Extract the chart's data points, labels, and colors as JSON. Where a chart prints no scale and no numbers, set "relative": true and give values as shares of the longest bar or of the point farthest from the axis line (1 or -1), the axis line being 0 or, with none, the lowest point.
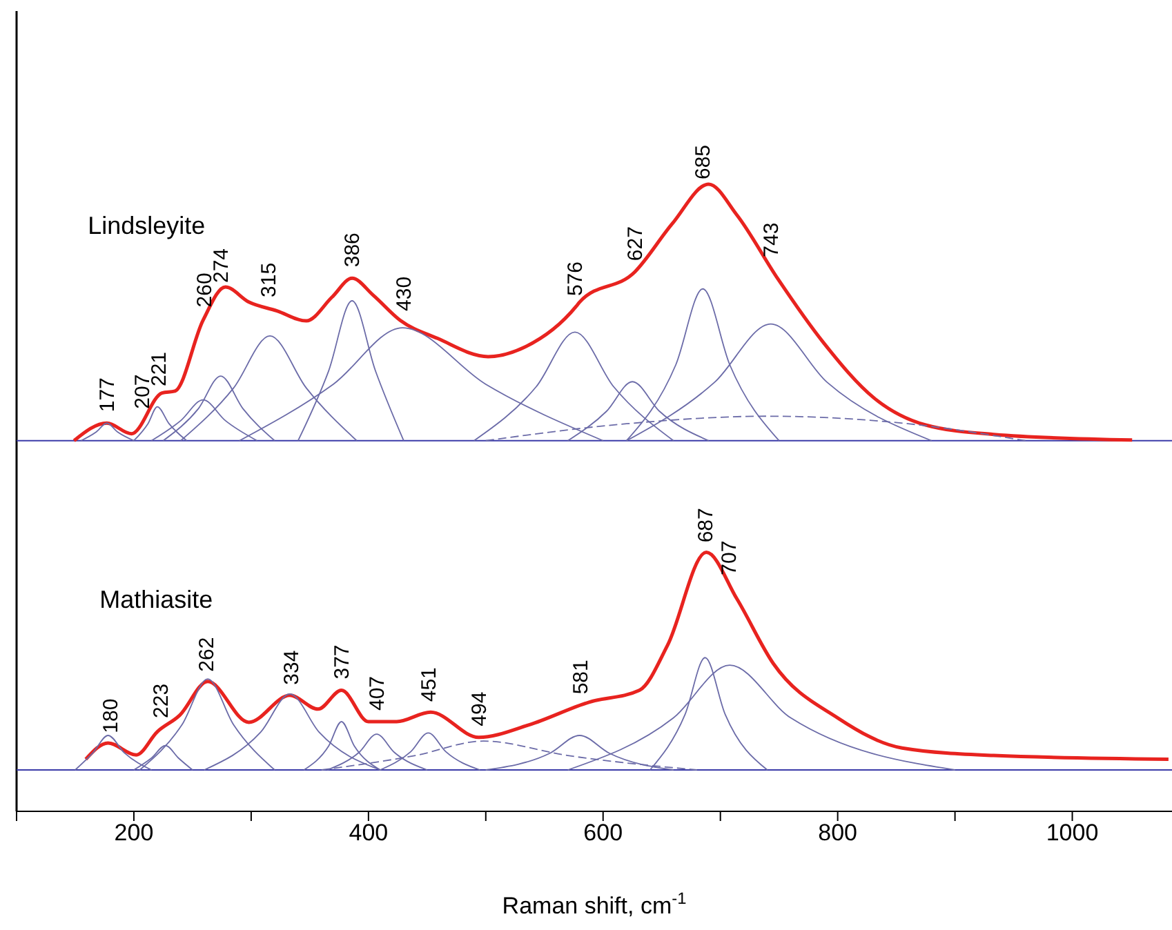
{
  "chart_data": {
    "type": "line",
    "relative": true,
    "xlabel": "Raman shift, cm$^{-1}$",
    "xlim": [
      100,
      1085
    ],
    "xticks": [
      {
        "value": 100,
        "label": null
      },
      200,
      {
        "value": 300,
        "label": null
      },
      400,
      {
        "value": 500,
        "label": null
      },
      600,
      {
        "value": 700,
        "label": null
      },
      800,
      {
        "value": 900,
        "label": null
      },
      1000
    ],
    "tick_labels": "x",
    "ref_lines": [
      {
        "axis": "y",
        "value": 0.591,
        "color": "#3a3aa8"
      },
      {
        "axis": "y",
        "value": 0.066,
        "color": "#3a3aa8"
      }
    ],
    "series": [
      {
        "name": "Lindsleyite",
        "color": "#e8231f",
        "x": [
          149,
          177,
          198,
          224,
          235,
          259,
          278,
          298,
          322,
          347,
          369,
          386,
          404,
          427,
          459,
          502,
          533,
          577,
          580,
          627,
          659,
          690,
          714,
          749,
          788,
          831,
          875,
          933,
          1051
        ],
        "values": [
          0.591,
          0.619,
          0.602,
          0.667,
          0.67,
          0.783,
          0.836,
          0.812,
          0.798,
          0.782,
          0.82,
          0.85,
          0.823,
          0.783,
          0.754,
          0.725,
          0.74,
          0.805,
          0.812,
          0.86,
          0.937,
          1.0,
          0.951,
          0.849,
          0.747,
          0.659,
          0.616,
          0.601,
          0.592
        ]
      },
      {
        "name": "Mathiasite",
        "color": "#e8231f",
        "x": [
          159,
          178,
          202,
          220,
          239,
          263,
          298,
          333,
          357,
          377,
          400,
          424,
          453,
          494,
          537,
          588,
          631,
          655,
          688,
          714,
          745,
          800,
          855,
          933,
          1082
        ],
        "values": [
          0.083,
          0.109,
          0.09,
          0.127,
          0.153,
          0.207,
          0.142,
          0.185,
          0.163,
          0.193,
          0.143,
          0.143,
          0.158,
          0.118,
          0.138,
          0.174,
          0.193,
          0.265,
          0.413,
          0.339,
          0.236,
          0.149,
          0.101,
          0.089,
          0.083
        ]
      },
      {
        "color": "#6b6ba8",
        "x": [
          155,
          168,
          177,
          186,
          200
        ],
        "values": [
          0.591,
          0.605,
          0.619,
          0.605,
          0.591
        ]
      },
      {
        "color": "#6b6ba8",
        "x": [
          200,
          212,
          220,
          230,
          245
        ],
        "values": [
          0.591,
          0.618,
          0.645,
          0.618,
          0.591
        ]
      },
      {
        "color": "#6b6ba8",
        "x": [
          215,
          240,
          259,
          278,
          305
        ],
        "values": [
          0.591,
          0.623,
          0.656,
          0.623,
          0.591
        ]
      },
      {
        "color": "#6b6ba8",
        "x": [
          225,
          255,
          274,
          293,
          320
        ],
        "values": [
          0.591,
          0.642,
          0.694,
          0.642,
          0.591
        ]
      },
      {
        "color": "#6b6ba8",
        "x": [
          240,
          285,
          316,
          347,
          390
        ],
        "values": [
          0.591,
          0.675,
          0.758,
          0.675,
          0.591
        ]
      },
      {
        "color": "#6b6ba8",
        "x": [
          340,
          366,
          386,
          406,
          430
        ],
        "values": [
          0.591,
          0.702,
          0.814,
          0.702,
          0.591
        ]
      },
      {
        "color": "#6b6ba8",
        "x": [
          290,
          370,
          429,
          500,
          600
        ],
        "values": [
          0.591,
          0.681,
          0.771,
          0.681,
          0.591
        ]
      },
      {
        "color": "#6b6ba8",
        "x": [
          490,
          543,
          576,
          609,
          660
        ],
        "values": [
          0.591,
          0.677,
          0.764,
          0.677,
          0.591
        ]
      },
      {
        "color": "#6b6ba8",
        "x": [
          570,
          603,
          625,
          648,
          690
        ],
        "values": [
          0.591,
          0.638,
          0.685,
          0.638,
          0.591
        ]
      },
      {
        "color": "#6b6ba8",
        "x": [
          620,
          662,
          685,
          708,
          750
        ],
        "values": [
          0.591,
          0.712,
          0.833,
          0.712,
          0.591
        ]
      },
      {
        "color": "#6b6ba8",
        "x": [
          620,
          695,
          743,
          791,
          880
        ],
        "values": [
          0.591,
          0.684,
          0.777,
          0.684,
          0.591
        ]
      },
      {
        "color": "#6b6ba8",
        "line_style": "dashed",
        "x": [
          500,
          620,
          740,
          860,
          960
        ],
        "values": [
          0.591,
          0.618,
          0.63,
          0.618,
          0.591
        ]
      },
      {
        "color": "#6b6ba8",
        "x": [
          150,
          165,
          178,
          192,
          215
        ],
        "values": [
          0.066,
          0.093,
          0.121,
          0.093,
          0.066
        ]
      },
      {
        "color": "#6b6ba8",
        "x": [
          200,
          215,
          227,
          238,
          250
        ],
        "values": [
          0.066,
          0.085,
          0.105,
          0.085,
          0.066
        ]
      },
      {
        "color": "#6b6ba8",
        "x": [
          205,
          241,
          263,
          285,
          320
        ],
        "values": [
          0.066,
          0.138,
          0.211,
          0.138,
          0.066
        ]
      },
      {
        "color": "#6b6ba8",
        "x": [
          260,
          308,
          333,
          358,
          410
        ],
        "values": [
          0.066,
          0.126,
          0.187,
          0.126,
          0.066
        ]
      },
      {
        "color": "#6b6ba8",
        "x": [
          345,
          366,
          377,
          388,
          410
        ],
        "values": [
          0.066,
          0.104,
          0.143,
          0.104,
          0.066
        ]
      },
      {
        "color": "#6b6ba8",
        "x": [
          365,
          392,
          407,
          422,
          450
        ],
        "values": [
          0.066,
          0.094,
          0.123,
          0.094,
          0.066
        ]
      },
      {
        "color": "#6b6ba8",
        "x": [
          410,
          436,
          451,
          466,
          495
        ],
        "values": [
          0.066,
          0.095,
          0.125,
          0.095,
          0.066
        ]
      },
      {
        "color": "#6b6ba8",
        "line_style": "dashed",
        "x": [
          360,
          440,
          498,
          570,
          680
        ],
        "values": [
          0.066,
          0.089,
          0.112,
          0.089,
          0.066
        ]
      },
      {
        "color": "#6b6ba8",
        "x": [
          500,
          555,
          580,
          605,
          660
        ],
        "values": [
          0.066,
          0.093,
          0.121,
          0.093,
          0.066
        ]
      },
      {
        "color": "#6b6ba8",
        "x": [
          640,
          670,
          687,
          704,
          740
        ],
        "values": [
          0.066,
          0.155,
          0.245,
          0.155,
          0.066
        ]
      },
      {
        "color": "#6b6ba8",
        "x": [
          570,
          660,
          708,
          760,
          900
        ],
        "values": [
          0.066,
          0.149,
          0.233,
          0.149,
          0.066
        ]
      }
    ],
    "annotations": [
      {
        "text": "177",
        "x": 177,
        "y": 0.619
      },
      {
        "text": "207",
        "x": 207,
        "y": 0.624
      },
      {
        "text": "221",
        "x": 221,
        "y": 0.66
      },
      {
        "text": "260",
        "x": 260,
        "y": 0.786
      },
      {
        "text": "274",
        "x": 274,
        "y": 0.825
      },
      {
        "text": "315",
        "x": 315,
        "y": 0.802
      },
      {
        "text": "386",
        "x": 386,
        "y": 0.85
      },
      {
        "text": "430",
        "x": 430,
        "y": 0.78
      },
      {
        "text": "576",
        "x": 576,
        "y": 0.804
      },
      {
        "text": "627",
        "x": 627,
        "y": 0.86
      },
      {
        "text": "685",
        "x": 685,
        "y": 0.99
      },
      {
        "text": "743",
        "x": 743,
        "y": 0.866
      },
      {
        "text": "180",
        "x": 180,
        "y": 0.107
      },
      {
        "text": "223",
        "x": 223,
        "y": 0.131
      },
      {
        "text": "262",
        "x": 262,
        "y": 0.205
      },
      {
        "text": "334",
        "x": 334,
        "y": 0.184
      },
      {
        "text": "377",
        "x": 377,
        "y": 0.193
      },
      {
        "text": "407",
        "x": 407,
        "y": 0.143
      },
      {
        "text": "451",
        "x": 451,
        "y": 0.157
      },
      {
        "text": "494",
        "x": 494,
        "y": 0.118
      },
      {
        "text": "581",
        "x": 581,
        "y": 0.169
      },
      {
        "text": "687",
        "x": 687,
        "y": 0.411
      },
      {
        "text": "707",
        "x": 707,
        "y": 0.359
      }
    ]
  }
}
